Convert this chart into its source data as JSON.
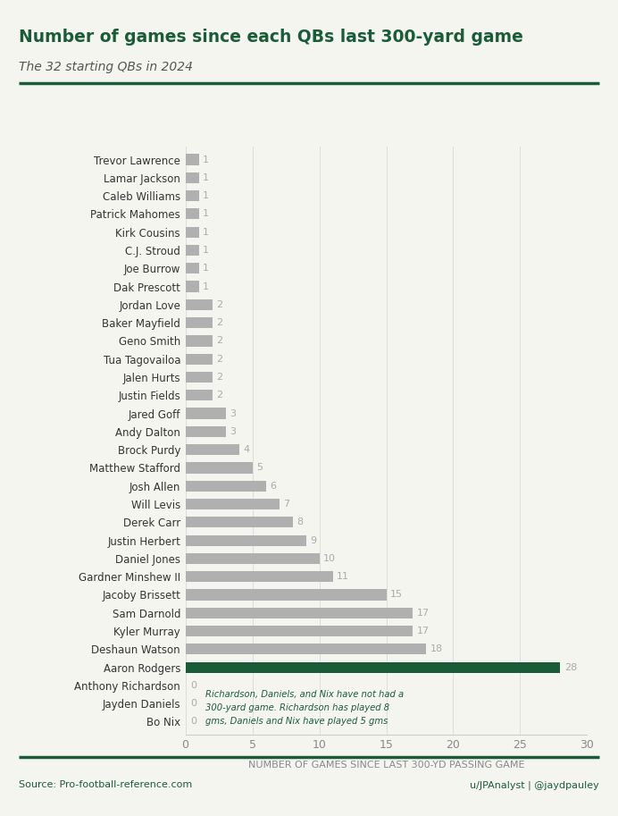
{
  "title": "Number of games since each QBs last 300-yard game",
  "subtitle": "The 32 starting QBs in 2024",
  "xlabel": "NUMBER OF GAMES SINCE LAST 300-YD PASSING GAME",
  "source": "Source: Pro-football-reference.com",
  "credit": "u/JPAnalyst | @jaydpauley",
  "categories": [
    "Trevor Lawrence",
    "Lamar Jackson",
    "Caleb Williams",
    "Patrick Mahomes",
    "Kirk Cousins",
    "C.J. Stroud",
    "Joe Burrow",
    "Dak Prescott",
    "Jordan Love",
    "Baker Mayfield",
    "Geno Smith",
    "Tua Tagovailoa",
    "Jalen Hurts",
    "Justin Fields",
    "Jared Goff",
    "Andy Dalton",
    "Brock Purdy",
    "Matthew Stafford",
    "Josh Allen",
    "Will Levis",
    "Derek Carr",
    "Justin Herbert",
    "Daniel Jones",
    "Gardner Minshew II",
    "Jacoby Brissett",
    "Sam Darnold",
    "Kyler Murray",
    "Deshaun Watson",
    "Aaron Rodgers",
    "Anthony Richardson",
    "Jayden Daniels",
    "Bo Nix"
  ],
  "values": [
    1,
    1,
    1,
    1,
    1,
    1,
    1,
    1,
    2,
    2,
    2,
    2,
    2,
    2,
    3,
    3,
    4,
    5,
    6,
    7,
    8,
    9,
    10,
    11,
    15,
    17,
    17,
    18,
    28,
    0,
    0,
    0
  ],
  "bar_colors": [
    "#b0b0b0",
    "#b0b0b0",
    "#b0b0b0",
    "#b0b0b0",
    "#b0b0b0",
    "#b0b0b0",
    "#b0b0b0",
    "#b0b0b0",
    "#b0b0b0",
    "#b0b0b0",
    "#b0b0b0",
    "#b0b0b0",
    "#b0b0b0",
    "#b0b0b0",
    "#b0b0b0",
    "#b0b0b0",
    "#b0b0b0",
    "#b0b0b0",
    "#b0b0b0",
    "#b0b0b0",
    "#b0b0b0",
    "#b0b0b0",
    "#b0b0b0",
    "#b0b0b0",
    "#b0b0b0",
    "#b0b0b0",
    "#b0b0b0",
    "#b0b0b0",
    "#1a5c38",
    "#b0b0b0",
    "#b0b0b0",
    "#b0b0b0"
  ],
  "title_color": "#1a5c38",
  "subtitle_color": "#555555",
  "annotation_text": "Richardson, Daniels, and Nix have not had a\n300-yard game. Richardson has played 8\ngms, Daniels and Nix have played 5 gms",
  "annotation_color": "#1a5c38",
  "xlim": [
    0,
    30
  ],
  "bar_height": 0.6,
  "figsize": [
    6.92,
    9.13
  ],
  "dpi": 100,
  "background_color": "#f5f5f0",
  "line_color": "#1a5c38"
}
